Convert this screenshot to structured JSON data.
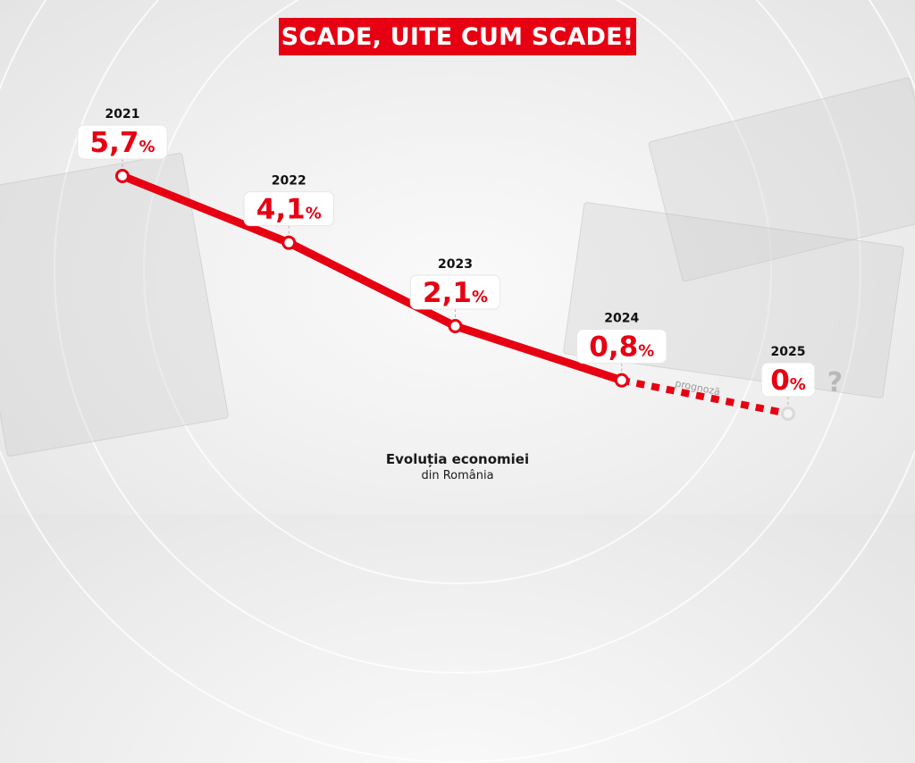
{
  "title": "SCADE, UITE CUM SCADE!",
  "caption": {
    "line1": "Evoluția economiei",
    "line2": "din România"
  },
  "chart_data": {
    "type": "line",
    "title": "SCADE, UITE CUM SCADE!",
    "xlabel": "",
    "ylabel": "",
    "unit": "%",
    "grid": false,
    "x": [
      "2021",
      "2022",
      "2023",
      "2024",
      "2025"
    ],
    "series": [
      {
        "values": [
          5.7,
          4.1,
          2.1,
          0.8,
          0
        ],
        "labels": [
          "5,7",
          "4,1",
          "2,1",
          "0,8",
          "0"
        ],
        "line_style": [
          "solid",
          "solid",
          "solid",
          "dashed"
        ]
      }
    ],
    "forecast_label": "prognoză",
    "forecast_marker": "?",
    "colors": {
      "line": "#e60012",
      "label_text": "#e60012",
      "year_text": "#111111",
      "forecast_text": "#9a9a9a"
    }
  }
}
